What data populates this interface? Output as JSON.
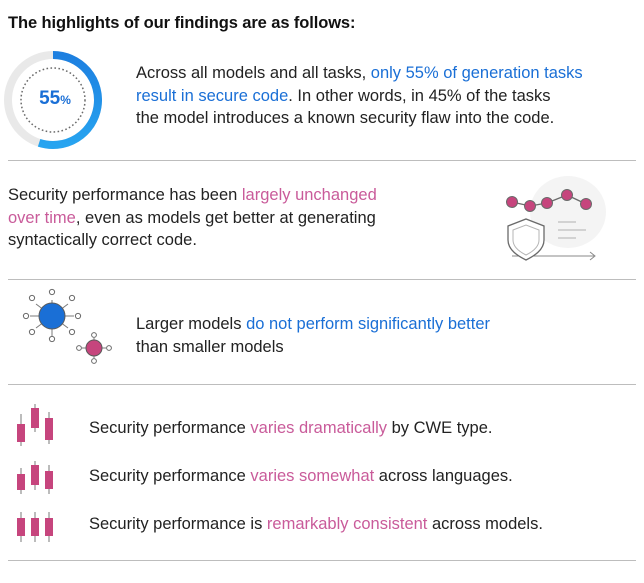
{
  "heading": "The highlights of our findings are as follows:",
  "colors": {
    "blue": "#1a6fd6",
    "pink": "#c95b9a",
    "divider": "#bdbdbd"
  },
  "finding1": {
    "percent_value": "55",
    "percent_sign": "%",
    "progress_fraction": 0.55,
    "line1_plain": "Across all models and all tasks, ",
    "line1_highlight": "only 55% of generation tasks",
    "line2_highlight": "result in secure code",
    "line2_plain": ". In other words, in 45% of the tasks",
    "line3_plain": "the model introduces a known security flaw into the code.",
    "icon": "donut-progress-icon"
  },
  "finding2": {
    "line1_plain": "Security performance has been ",
    "line1_highlight": "largely unchanged",
    "line2_highlight": "over time",
    "line2_plain": ", even as models get better at generating",
    "line3_plain": "syntactically correct code.",
    "icon": "shield-timeline-icon"
  },
  "finding3": {
    "line1_plain": "Larger models ",
    "line1_highlight": "do not perform significantly better",
    "line2_plain": "than smaller models",
    "icon": "network-nodes-icon"
  },
  "finding4": {
    "plain_before": "Security performance ",
    "highlight": "varies dramatically",
    "plain_after": " by CWE type.",
    "icon": "candlestick-icon"
  },
  "finding5": {
    "plain_before": "Security performance ",
    "highlight": "varies somewhat",
    "plain_after": " across languages.",
    "icon": "candlestick-icon"
  },
  "finding6": {
    "plain_before": "Security performance is ",
    "highlight": "remarkably consistent",
    "plain_after": " across models.",
    "icon": "candlestick-icon"
  }
}
